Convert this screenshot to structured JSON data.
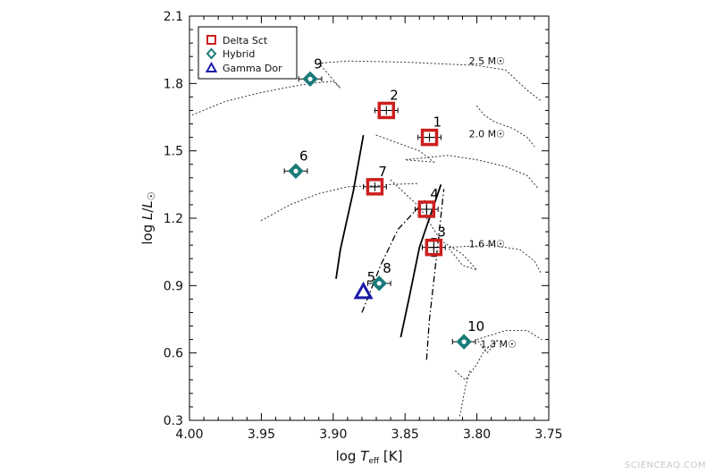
{
  "chart_data": {
    "type": "scatter",
    "xlabel": "log T_eff [K]",
    "ylabel": "log L/L☉",
    "xlim": [
      4.0,
      3.75
    ],
    "ylim": [
      0.3,
      2.1
    ],
    "x_reversed": true,
    "x_ticks": [
      "4.00",
      "3.95",
      "3.90",
      "3.85",
      "3.80",
      "3.75"
    ],
    "y_ticks": [
      "0.3",
      "0.6",
      "0.9",
      "1.2",
      "1.5",
      "1.8",
      "2.1"
    ],
    "legend": {
      "placement": "top-left",
      "entries": [
        {
          "label": "Delta Sct",
          "marker": "square",
          "color": "#cc1f1f"
        },
        {
          "label": "Hybrid",
          "marker": "diamond",
          "color": "#1a7a7a"
        },
        {
          "label": "Gamma Dor",
          "marker": "triangle",
          "color": "#1a1aaa"
        }
      ]
    },
    "series": [
      {
        "name": "Delta Sct",
        "marker": "square",
        "color": "#cc1f1f",
        "points": [
          {
            "id": "1",
            "x": 3.833,
            "y": 1.56,
            "xerr": 0.008
          },
          {
            "id": "2",
            "x": 3.863,
            "y": 1.68,
            "xerr": 0.008
          },
          {
            "id": "3",
            "x": 3.83,
            "y": 1.07,
            "xerr": 0.008,
            "yerr": 0.04
          },
          {
            "id": "4",
            "x": 3.835,
            "y": 1.24,
            "xerr": 0.008,
            "yerr": 0.03
          },
          {
            "id": "7",
            "x": 3.871,
            "y": 1.34,
            "xerr": 0.008
          }
        ]
      },
      {
        "name": "Hybrid",
        "marker": "diamond",
        "color": "#1a7a7a",
        "points": [
          {
            "id": "6",
            "x": 3.926,
            "y": 1.41,
            "xerr": 0.008
          },
          {
            "id": "8",
            "x": 3.868,
            "y": 0.91,
            "xerr": 0.008
          },
          {
            "id": "9",
            "x": 3.916,
            "y": 1.82,
            "xerr": 0.008
          },
          {
            "id": "10",
            "x": 3.809,
            "y": 0.65,
            "xerr": 0.008
          }
        ]
      },
      {
        "name": "Gamma Dor",
        "marker": "triangle",
        "color": "#1a1aaa",
        "points": [
          {
            "id": "5",
            "x": 3.879,
            "y": 0.87
          }
        ]
      }
    ],
    "tracks": [
      {
        "label": "2.5",
        "style": "dotted",
        "points": [
          [
            3.998,
            1.66
          ],
          [
            3.975,
            1.72
          ],
          [
            3.95,
            1.76
          ],
          [
            3.93,
            1.785
          ],
          [
            3.916,
            1.8
          ],
          [
            3.9,
            1.81
          ],
          [
            3.895,
            1.78
          ],
          [
            3.91,
            1.89
          ],
          [
            3.89,
            1.9
          ],
          [
            3.85,
            1.895
          ],
          [
            3.8,
            1.88
          ],
          [
            3.78,
            1.86
          ],
          [
            3.765,
            1.77
          ],
          [
            3.755,
            1.72
          ]
        ]
      },
      {
        "label": "2.0",
        "style": "dotted",
        "points": [
          [
            3.8,
            1.7
          ],
          [
            3.795,
            1.66
          ],
          [
            3.788,
            1.63
          ],
          [
            3.775,
            1.6
          ],
          [
            3.765,
            1.56
          ],
          [
            3.76,
            1.52
          ]
        ]
      },
      {
        "label": "",
        "style": "dotted",
        "points": [
          [
            3.95,
            1.19
          ],
          [
            3.93,
            1.26
          ],
          [
            3.91,
            1.31
          ],
          [
            3.89,
            1.34
          ],
          [
            3.87,
            1.345
          ],
          [
            3.86,
            1.35
          ],
          [
            3.84,
            1.355
          ]
        ]
      },
      {
        "label": "",
        "style": "dotted",
        "points": [
          [
            3.87,
            1.57
          ],
          [
            3.84,
            1.5
          ],
          [
            3.83,
            1.45
          ],
          [
            3.85,
            1.46
          ],
          [
            3.82,
            1.48
          ],
          [
            3.8,
            1.46
          ],
          [
            3.78,
            1.43
          ],
          [
            3.765,
            1.39
          ],
          [
            3.757,
            1.33
          ]
        ]
      },
      {
        "label": "1.6",
        "style": "dotted",
        "points": [
          [
            3.86,
            1.37
          ],
          [
            3.84,
            1.25
          ],
          [
            3.825,
            1.1
          ],
          [
            3.81,
            1.04
          ],
          [
            3.8,
            0.97
          ],
          [
            3.81,
            0.99
          ],
          [
            3.82,
            1.07
          ],
          [
            3.79,
            1.08
          ],
          [
            3.77,
            1.06
          ],
          [
            3.76,
            1.01
          ],
          [
            3.755,
            0.95
          ]
        ]
      },
      {
        "label": "1.3",
        "style": "dotted",
        "points": [
          [
            3.815,
            0.52
          ],
          [
            3.808,
            0.48
          ],
          [
            3.8,
            0.55
          ],
          [
            3.795,
            0.61
          ],
          [
            3.785,
            0.66
          ],
          [
            3.793,
            0.6
          ],
          [
            3.8,
            0.66
          ],
          [
            3.78,
            0.7
          ],
          [
            3.765,
            0.7
          ],
          [
            3.755,
            0.66
          ]
        ]
      },
      {
        "label": "",
        "style": "dotted",
        "points": [
          [
            3.812,
            0.32
          ],
          [
            3.81,
            0.38
          ],
          [
            3.808,
            0.45
          ],
          [
            3.805,
            0.52
          ]
        ]
      }
    ],
    "instability_strip_lines": [
      {
        "style": "solid",
        "points": [
          [
            3.898,
            0.93
          ],
          [
            3.895,
            1.06
          ],
          [
            3.886,
            1.32
          ],
          [
            3.879,
            1.57
          ]
        ]
      },
      {
        "style": "solid",
        "points": [
          [
            3.853,
            0.67
          ],
          [
            3.847,
            0.85
          ],
          [
            3.84,
            1.07
          ],
          [
            3.825,
            1.35
          ]
        ]
      },
      {
        "style": "dashdot",
        "points": [
          [
            3.88,
            0.78
          ],
          [
            3.867,
            0.99
          ],
          [
            3.855,
            1.15
          ],
          [
            3.836,
            1.28
          ]
        ]
      },
      {
        "style": "dashdot",
        "points": [
          [
            3.835,
            0.57
          ],
          [
            3.833,
            0.75
          ],
          [
            3.829,
            0.98
          ],
          [
            3.823,
            1.33
          ]
        ]
      }
    ],
    "mass_labels": [
      {
        "text": "2.5 M☉",
        "x": 3.793,
        "y": 1.885
      },
      {
        "text": "2.0 M☉",
        "x": 3.793,
        "y": 1.56
      },
      {
        "text": "1.6 M☉",
        "x": 3.793,
        "y": 1.07
      },
      {
        "text": "1.3 M☉",
        "x": 3.785,
        "y": 0.625
      }
    ]
  },
  "watermark": "SCIENCEAQ.COM"
}
